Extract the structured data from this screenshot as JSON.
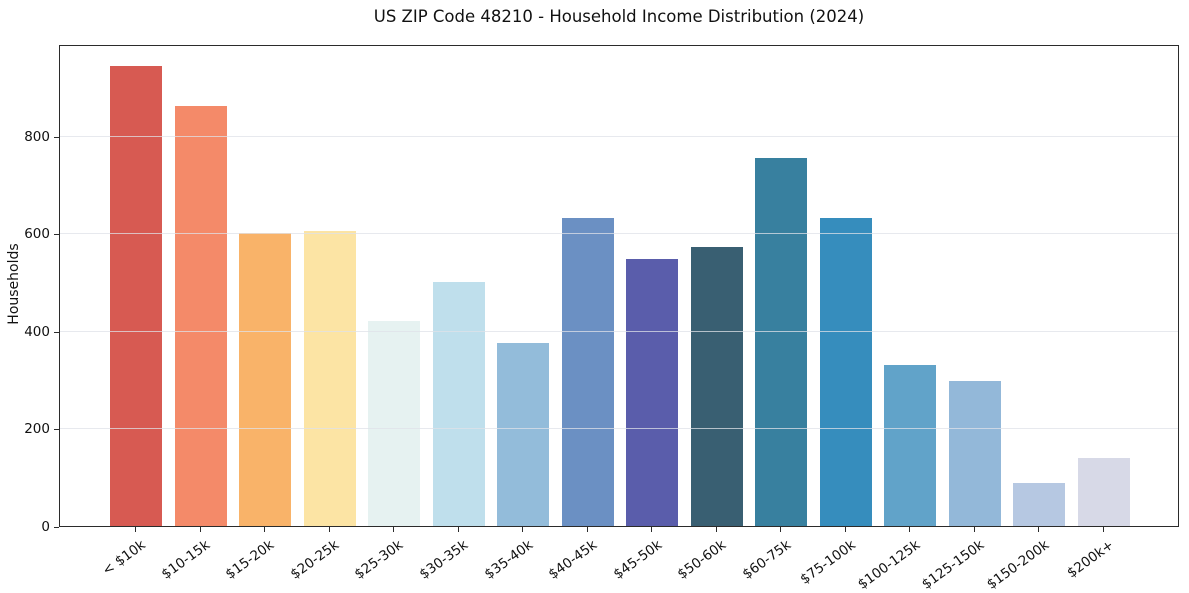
{
  "chart_data": {
    "type": "bar",
    "title": "US ZIP Code 48210 - Household Income Distribution (2024)",
    "xlabel": "",
    "ylabel": "Households",
    "categories": [
      "< $10k",
      "$10-15k",
      "$15-20k",
      "$20-25k",
      "$25-30k",
      "$30-35k",
      "$35-40k",
      "$40-45k",
      "$45-50k",
      "$50-60k",
      "$60-75k",
      "$75-100k",
      "$100-125k",
      "$125-150k",
      "$150-200k",
      "$200k+"
    ],
    "values": [
      944,
      862,
      602,
      606,
      421,
      501,
      376,
      633,
      549,
      574,
      756,
      633,
      330,
      297,
      88,
      139
    ],
    "bar_colors": [
      "#d75a52",
      "#f48a69",
      "#f9b369",
      "#fce4a4",
      "#e6f2f1",
      "#bfdfec",
      "#93bcda",
      "#6b90c3",
      "#5a5dab",
      "#395f72",
      "#38809f",
      "#368dbd",
      "#61a3c9",
      "#93b8d9",
      "#b6c8e2",
      "#d7d9e7"
    ],
    "ylim": [
      0,
      990
    ],
    "yticks": [
      0,
      200,
      400,
      600,
      800
    ],
    "grid": "horizontal-only",
    "legend": "none",
    "plot_background": "#ffffff",
    "spine_color": "#2b2b2b"
  }
}
